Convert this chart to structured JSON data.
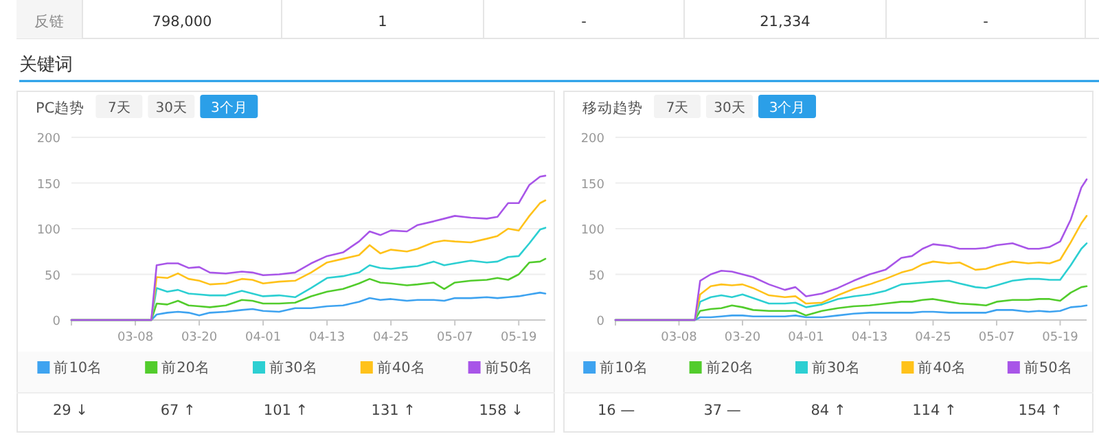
{
  "chart_data": [
    {
      "type": "line",
      "title": "PC趋势",
      "annotations": [
        "反链",
        "798,000",
        "1",
        "-",
        "21,334",
        "-",
        "关键词",
        "7天",
        "30天",
        "3个月",
        "29 ↓",
        "67 ↑",
        "101 ↑",
        "131 ↑",
        "158 ↓"
      ],
      "x": [
        "--02-24",
        "--03-11",
        "--03-12",
        "--03-14",
        "--03-16",
        "--03-18",
        "--03-20",
        "--03-22",
        "--03-25",
        "--03-28",
        "--03-30",
        "--04-01",
        "--04-04",
        "--04-07",
        "--04-10",
        "--04-13",
        "--04-16",
        "--04-19",
        "--04-21",
        "--04-23",
        "--04-25",
        "--04-28",
        "--04-30",
        "--05-03",
        "--05-05",
        "--05-07",
        "--05-10",
        "--05-13",
        "--05-15",
        "--05-17",
        "--05-19",
        "--05-21",
        "--05-23",
        "--05-24"
      ],
      "xlim": [
        "--02-24",
        "--05-24"
      ],
      "xticks": [
        {
          "value": "--03-08",
          "label": "03-08"
        },
        {
          "value": "--03-20",
          "label": "03-20"
        },
        {
          "value": "--04-01",
          "label": "04-01"
        },
        {
          "value": "--04-13",
          "label": "04-13"
        },
        {
          "value": "--04-25",
          "label": "04-25"
        },
        {
          "value": "--05-07",
          "label": "05-07"
        },
        {
          "value": "--05-19",
          "label": "05-19"
        }
      ],
      "ylim": [
        0,
        200
      ],
      "yticks": [
        0,
        50,
        100,
        150,
        200
      ],
      "grid": "y",
      "legend": "bottom",
      "marker": "none",
      "line_style": "solid",
      "series": [
        {
          "name": "前10名",
          "color": "#3ea3f0",
          "values": [
            0,
            0,
            6,
            8,
            9,
            8,
            5,
            8,
            9,
            11,
            12,
            10,
            9,
            13,
            13,
            15,
            16,
            20,
            24,
            22,
            23,
            21,
            22,
            22,
            21,
            24,
            24,
            25,
            24,
            25,
            26,
            28,
            30,
            29
          ]
        },
        {
          "name": "前20名",
          "color": "#52cc2c",
          "values": [
            0,
            0,
            18,
            17,
            21,
            16,
            15,
            14,
            16,
            22,
            21,
            18,
            18,
            19,
            26,
            31,
            34,
            40,
            45,
            41,
            40,
            38,
            39,
            41,
            34,
            41,
            43,
            44,
            46,
            44,
            50,
            63,
            64,
            67
          ]
        },
        {
          "name": "前30名",
          "color": "#2ccfd2",
          "values": [
            0,
            0,
            35,
            31,
            33,
            29,
            28,
            27,
            27,
            32,
            29,
            26,
            27,
            25,
            35,
            46,
            48,
            52,
            60,
            57,
            56,
            58,
            59,
            64,
            60,
            62,
            65,
            63,
            64,
            69,
            70,
            84,
            99,
            101
          ]
        },
        {
          "name": "前40名",
          "color": "#ffc21a",
          "values": [
            0,
            0,
            47,
            46,
            51,
            45,
            43,
            39,
            40,
            45,
            44,
            40,
            42,
            43,
            52,
            63,
            67,
            71,
            82,
            73,
            77,
            75,
            78,
            85,
            87,
            86,
            85,
            89,
            92,
            100,
            98,
            114,
            128,
            131
          ]
        },
        {
          "name": "前50名",
          "color": "#a855e8",
          "values": [
            0,
            0,
            60,
            62,
            62,
            57,
            58,
            52,
            51,
            53,
            52,
            49,
            50,
            52,
            62,
            70,
            74,
            86,
            97,
            93,
            98,
            97,
            104,
            108,
            111,
            114,
            112,
            111,
            113,
            128,
            128,
            148,
            157,
            158
          ]
        }
      ]
    },
    {
      "type": "line",
      "title": "移动趋势",
      "annotations": [
        "7天",
        "30天",
        "3个月",
        "16 —",
        "37 —",
        "84 ↑",
        "114 ↑",
        "154 ↑"
      ],
      "x": [
        "--02-24",
        "--03-11",
        "--03-12",
        "--03-14",
        "--03-16",
        "--03-18",
        "--03-20",
        "--03-22",
        "--03-25",
        "--03-28",
        "--03-30",
        "--04-01",
        "--04-04",
        "--04-07",
        "--04-10",
        "--04-13",
        "--04-16",
        "--04-19",
        "--04-21",
        "--04-23",
        "--04-25",
        "--04-28",
        "--04-30",
        "--05-03",
        "--05-05",
        "--05-07",
        "--05-10",
        "--05-13",
        "--05-15",
        "--05-17",
        "--05-19",
        "--05-21",
        "--05-23",
        "--05-24"
      ],
      "xlim": [
        "--02-24",
        "--05-24"
      ],
      "xticks": [
        {
          "value": "--03-08",
          "label": "03-08"
        },
        {
          "value": "--03-20",
          "label": "03-20"
        },
        {
          "value": "--04-01",
          "label": "04-01"
        },
        {
          "value": "--04-13",
          "label": "04-13"
        },
        {
          "value": "--04-25",
          "label": "04-25"
        },
        {
          "value": "--05-07",
          "label": "05-07"
        },
        {
          "value": "--05-19",
          "label": "05-19"
        }
      ],
      "ylim": [
        0,
        200
      ],
      "yticks": [
        0,
        50,
        100,
        150,
        200
      ],
      "grid": "y",
      "legend": "bottom",
      "marker": "none",
      "line_style": "solid",
      "series": [
        {
          "name": "前10名",
          "color": "#3ea3f0",
          "values": [
            0,
            0,
            3,
            3,
            4,
            5,
            5,
            4,
            4,
            4,
            5,
            3,
            3,
            5,
            7,
            8,
            8,
            8,
            8,
            9,
            9,
            8,
            8,
            8,
            8,
            11,
            11,
            9,
            10,
            9,
            10,
            14,
            15,
            16
          ]
        },
        {
          "name": "前20名",
          "color": "#52cc2c",
          "values": [
            0,
            0,
            10,
            12,
            13,
            16,
            14,
            11,
            10,
            10,
            10,
            5,
            10,
            13,
            15,
            16,
            18,
            20,
            20,
            22,
            23,
            20,
            18,
            17,
            16,
            20,
            22,
            22,
            23,
            23,
            21,
            30,
            36,
            37
          ]
        },
        {
          "name": "前30名",
          "color": "#2ccfd2",
          "values": [
            0,
            0,
            20,
            25,
            27,
            25,
            28,
            24,
            18,
            18,
            19,
            14,
            17,
            23,
            26,
            28,
            32,
            39,
            40,
            41,
            42,
            43,
            40,
            36,
            35,
            38,
            43,
            45,
            45,
            44,
            44,
            60,
            78,
            84
          ]
        },
        {
          "name": "前40名",
          "color": "#ffc21a",
          "values": [
            0,
            0,
            28,
            37,
            39,
            38,
            39,
            35,
            27,
            25,
            26,
            18,
            19,
            27,
            34,
            39,
            45,
            52,
            55,
            61,
            64,
            62,
            63,
            55,
            56,
            60,
            64,
            62,
            63,
            62,
            66,
            85,
            106,
            114
          ]
        },
        {
          "name": "前50名",
          "color": "#a855e8",
          "values": [
            0,
            0,
            43,
            50,
            54,
            53,
            50,
            47,
            39,
            33,
            36,
            26,
            29,
            35,
            43,
            50,
            55,
            68,
            70,
            78,
            83,
            81,
            78,
            78,
            79,
            82,
            84,
            78,
            78,
            80,
            86,
            110,
            145,
            154
          ]
        }
      ]
    }
  ]
}
